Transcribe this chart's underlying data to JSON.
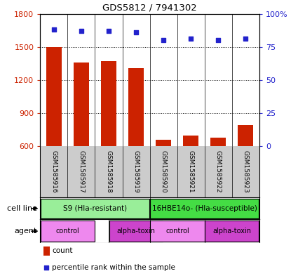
{
  "title": "GDS5812 / 7941302",
  "samples": [
    "GSM1585916",
    "GSM1585917",
    "GSM1585918",
    "GSM1585919",
    "GSM1585920",
    "GSM1585921",
    "GSM1585922",
    "GSM1585923"
  ],
  "counts": [
    1500,
    1360,
    1370,
    1310,
    660,
    700,
    680,
    790
  ],
  "percentiles": [
    88,
    87,
    87,
    86,
    80,
    81,
    80,
    81
  ],
  "ylim_left": [
    600,
    1800
  ],
  "ylim_right": [
    0,
    100
  ],
  "yticks_left": [
    600,
    900,
    1200,
    1500,
    1800
  ],
  "yticks_right": [
    0,
    25,
    50,
    75,
    100
  ],
  "bar_color": "#cc2200",
  "dot_color": "#2222cc",
  "cell_line_label1": "S9 (Hla-resistant)",
  "cell_line_label2": "16HBE14o- (Hla-susceptible)",
  "cell_line_color1": "#99ee99",
  "cell_line_color2": "#44dd44",
  "agent_colors": [
    "#ee88ee",
    "#cc44cc",
    "#ee88ee",
    "#cc44cc"
  ],
  "agent_labels": [
    "control",
    "alpha-toxin",
    "control",
    "alpha-toxin"
  ],
  "sample_bg_color": "#cccccc",
  "legend_count_label": "count",
  "legend_pct_label": "percentile rank within the sample",
  "row_label_cellline": "cell line",
  "row_label_agent": "agent"
}
